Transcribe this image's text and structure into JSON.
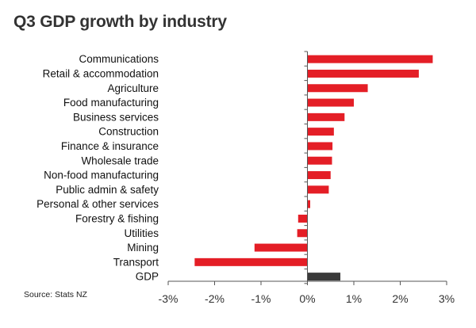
{
  "chart_data": {
    "type": "bar",
    "orientation": "horizontal",
    "title": "Q3 GDP growth by industry",
    "source": "Source: Stats NZ",
    "categories": [
      "Communications",
      "Retail & accommodation",
      "Agriculture",
      "Food manufacturing",
      "Business services",
      "Construction",
      "Finance & insurance",
      "Wholesale trade",
      "Non-food manufacturing",
      "Public admin & safety",
      "Personal & other services",
      "Forestry & fishing",
      "Utilities",
      "Mining",
      "Transport",
      "GDP"
    ],
    "values": [
      2.7,
      2.4,
      1.3,
      1.0,
      0.8,
      0.57,
      0.54,
      0.53,
      0.5,
      0.46,
      0.06,
      -0.2,
      -0.22,
      -1.14,
      -2.43,
      0.71
    ],
    "xlim": [
      -3,
      3
    ],
    "xticks": [
      -3,
      -2,
      -1,
      0,
      1,
      2,
      3
    ],
    "xtick_labels": [
      "-3%",
      "-2%",
      "-1%",
      "0%",
      "1%",
      "2%",
      "3%"
    ],
    "colors": {
      "industry": "#e41e26",
      "gdp": "#3a3a3a",
      "axis": "#555555"
    },
    "grid": false,
    "legend": "none"
  }
}
